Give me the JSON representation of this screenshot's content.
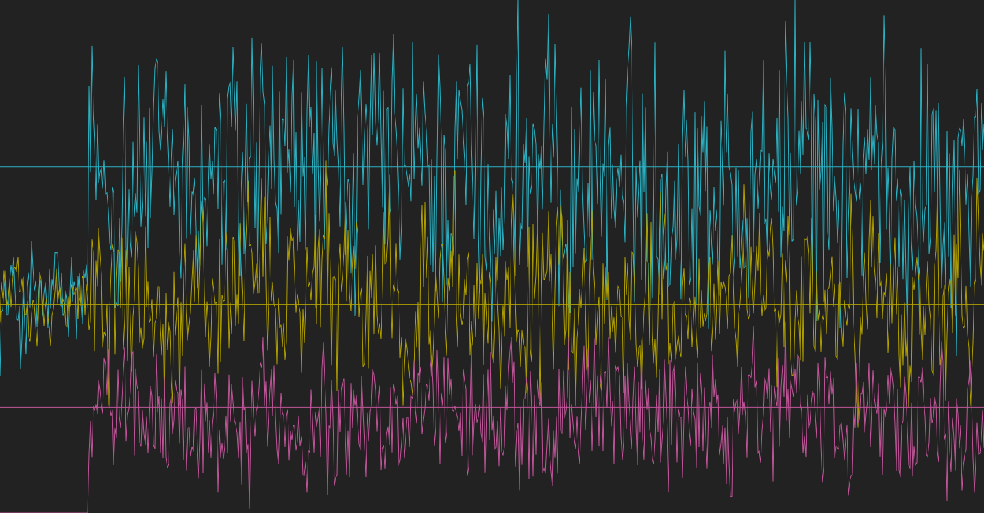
{
  "chart_data": {
    "type": "line",
    "grid": false,
    "legend": "none",
    "background": "#222222",
    "x": {
      "min": 0,
      "max": 1436
    },
    "y": {
      "min": -80,
      "max": 80
    },
    "series": [
      {
        "color": "#2ab2c3",
        "marker_level": 28,
        "pre_step": {
          "x_end": 128,
          "mean": -15,
          "amplitude": 20
        },
        "post_step": {
          "mean": 24,
          "amplitude": 42
        },
        "peak_samples": [
          {
            "x": 181,
            "y": 56
          },
          {
            "x": 461,
            "y": 61
          },
          {
            "x": 639,
            "y": 63
          },
          {
            "x": 686,
            "y": 60
          },
          {
            "x": 756,
            "y": 80
          },
          {
            "x": 862,
            "y": 58
          },
          {
            "x": 998,
            "y": 52
          },
          {
            "x": 1138,
            "y": 58
          },
          {
            "x": 1160,
            "y": 80
          },
          {
            "x": 1344,
            "y": 65
          },
          {
            "x": 1432,
            "y": 48
          }
        ]
      },
      {
        "color": "#b0a000",
        "marker_level": -15,
        "pre_step": {
          "x_end": 128,
          "mean": -12,
          "amplitude": 12
        },
        "post_step": {
          "mean": -14,
          "amplitude": 28
        }
      },
      {
        "color": "#c2559a",
        "marker_level": -47,
        "pre_step": {
          "x_end": 128,
          "mean": -80,
          "amplitude": 0
        },
        "post_step": {
          "mean": -50,
          "amplitude": 22
        }
      }
    ]
  }
}
